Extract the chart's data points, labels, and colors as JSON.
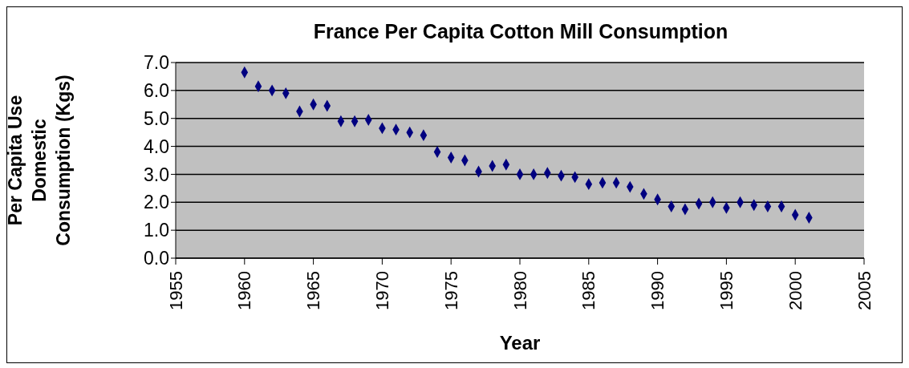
{
  "chart_data": {
    "type": "scatter",
    "title": "France Per Capita Cotton Mill Consumption",
    "xlabel": "Year",
    "ylabel": "Per Capita Use Domestic Consumption (Kgs)",
    "x": [
      1960,
      1961,
      1962,
      1963,
      1964,
      1965,
      1966,
      1967,
      1968,
      1969,
      1970,
      1971,
      1972,
      1973,
      1974,
      1975,
      1976,
      1977,
      1978,
      1979,
      1980,
      1981,
      1982,
      1983,
      1984,
      1985,
      1986,
      1987,
      1988,
      1989,
      1990,
      1991,
      1992,
      1993,
      1994,
      1995,
      1996,
      1997,
      1998,
      1999,
      2000,
      2001
    ],
    "series": [
      {
        "color": "#000080",
        "values": [
          6.65,
          6.15,
          6.0,
          5.9,
          5.25,
          5.5,
          5.45,
          4.9,
          4.9,
          4.95,
          4.65,
          4.6,
          4.5,
          4.4,
          3.8,
          3.6,
          3.5,
          3.1,
          3.3,
          3.35,
          3.0,
          3.0,
          3.05,
          2.95,
          2.9,
          2.65,
          2.7,
          2.7,
          2.55,
          2.3,
          2.1,
          1.85,
          1.75,
          1.95,
          2.0,
          1.8,
          2.0,
          1.9,
          1.85,
          1.85,
          1.55,
          1.45
        ]
      }
    ],
    "xlim": [
      1955,
      2005
    ],
    "xticks": [
      1955,
      1960,
      1965,
      1970,
      1975,
      1980,
      1985,
      1990,
      1995,
      2000,
      2005
    ],
    "ylim": [
      0,
      7
    ],
    "yticks": [
      {
        "value": 0,
        "label": "0.0"
      },
      {
        "value": 1,
        "label": "1.0"
      },
      {
        "value": 2,
        "label": "2.0"
      },
      {
        "value": 3,
        "label": "3.0"
      },
      {
        "value": 4,
        "label": "4.0"
      },
      {
        "value": 5,
        "label": "5.0"
      },
      {
        "value": 6,
        "label": "6.0"
      },
      {
        "value": 7,
        "label": "7.0"
      }
    ],
    "grid": "y",
    "marker": "diamond"
  }
}
